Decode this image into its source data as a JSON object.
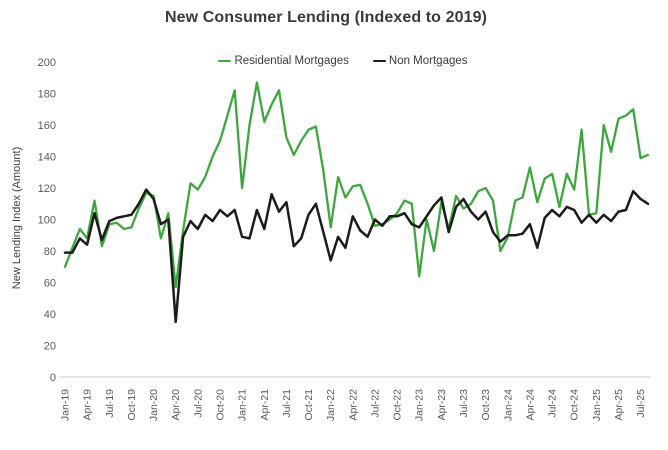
{
  "chart": {
    "title": "New Consumer Lending (Indexed to 2019)",
    "y_axis_title": "New Lending Index (Amount)"
  },
  "chart_data": {
    "type": "line",
    "title": "New Consumer Lending (Indexed to 2019)",
    "ylabel": "New Lending Index (Amount)",
    "xlabel": "",
    "grid": false,
    "legend_position": "top-center",
    "ylim": [
      0,
      200
    ],
    "y_ticks": [
      0,
      20,
      40,
      60,
      80,
      100,
      120,
      140,
      160,
      180,
      200
    ],
    "x_tick_step": 3,
    "colors": {
      "residential": "#3EA63E",
      "non_mortgage": "#1C1C1C",
      "axis_line": "#D8D8D8",
      "tick_text": "#595959",
      "title_text": "#3A3A3A"
    },
    "x": [
      "Jan-19",
      "Feb-19",
      "Mar-19",
      "Apr-19",
      "May-19",
      "Jun-19",
      "Jul-19",
      "Aug-19",
      "Sep-19",
      "Oct-19",
      "Nov-19",
      "Dec-19",
      "Jan-20",
      "Feb-20",
      "Mar-20",
      "Apr-20",
      "May-20",
      "Jun-20",
      "Jul-20",
      "Aug-20",
      "Sep-20",
      "Oct-20",
      "Nov-20",
      "Dec-20",
      "Jan-21",
      "Feb-21",
      "Mar-21",
      "Apr-21",
      "May-21",
      "Jun-21",
      "Jul-21",
      "Aug-21",
      "Sep-21",
      "Oct-21",
      "Nov-21",
      "Dec-21",
      "Jan-22",
      "Feb-22",
      "Mar-22",
      "Apr-22",
      "May-22",
      "Jun-22",
      "Jul-22",
      "Aug-22",
      "Sep-22",
      "Oct-22",
      "Nov-22",
      "Dec-22",
      "Jan-23",
      "Feb-23",
      "Mar-23",
      "Apr-23",
      "May-23",
      "Jun-23",
      "Jul-23",
      "Aug-23",
      "Sep-23",
      "Oct-23",
      "Nov-23",
      "Dec-23",
      "Jan-24",
      "Feb-24",
      "Mar-24",
      "Apr-24",
      "May-24",
      "Jun-24",
      "Jul-24",
      "Aug-24",
      "Sep-24",
      "Oct-24",
      "Nov-24",
      "Dec-24",
      "Jan-25",
      "Feb-25",
      "Mar-25",
      "Apr-25",
      "May-25",
      "Jun-25",
      "Jul-25",
      "Aug-25"
    ],
    "series": [
      {
        "name": "Residential Mortgages",
        "color": "#3EA63E",
        "width": 2.3,
        "data_name": "residential-mortgages-line",
        "values": [
          70,
          82,
          94,
          88,
          112,
          83,
          97,
          98,
          94,
          95,
          107,
          117,
          115,
          88,
          104,
          57,
          93,
          123,
          119,
          127,
          140,
          150,
          166,
          182,
          120,
          160,
          187,
          162,
          173,
          182,
          152,
          141,
          150,
          157,
          159,
          131,
          95,
          127,
          114,
          121,
          122,
          110,
          96,
          97,
          100,
          104,
          112,
          110,
          64,
          100,
          80,
          111,
          94,
          115,
          107,
          110,
          118,
          120,
          112,
          80,
          89,
          112,
          114,
          133,
          111,
          126,
          129,
          108,
          129,
          119,
          157,
          103,
          104,
          160,
          143,
          164,
          166,
          170,
          139,
          141
        ]
      },
      {
        "name": "Non Mortgages",
        "color": "#1C1C1C",
        "width": 2.5,
        "data_name": "non-mortgages-line",
        "values": [
          79,
          79,
          88,
          84,
          104,
          87,
          99,
          101,
          102,
          103,
          110,
          119,
          113,
          97,
          100,
          35,
          89,
          99,
          94,
          103,
          99,
          106,
          102,
          106,
          89,
          88,
          106,
          94,
          116,
          105,
          111,
          83,
          88,
          103,
          110,
          92,
          74,
          89,
          82,
          102,
          93,
          89,
          100,
          96,
          102,
          102,
          104,
          97,
          95,
          102,
          109,
          114,
          92,
          108,
          113,
          105,
          100,
          105,
          92,
          86,
          90,
          90,
          91,
          97,
          82,
          101,
          106,
          102,
          108,
          106,
          98,
          103,
          98,
          103,
          99,
          105,
          106,
          118,
          113,
          110
        ]
      }
    ]
  }
}
